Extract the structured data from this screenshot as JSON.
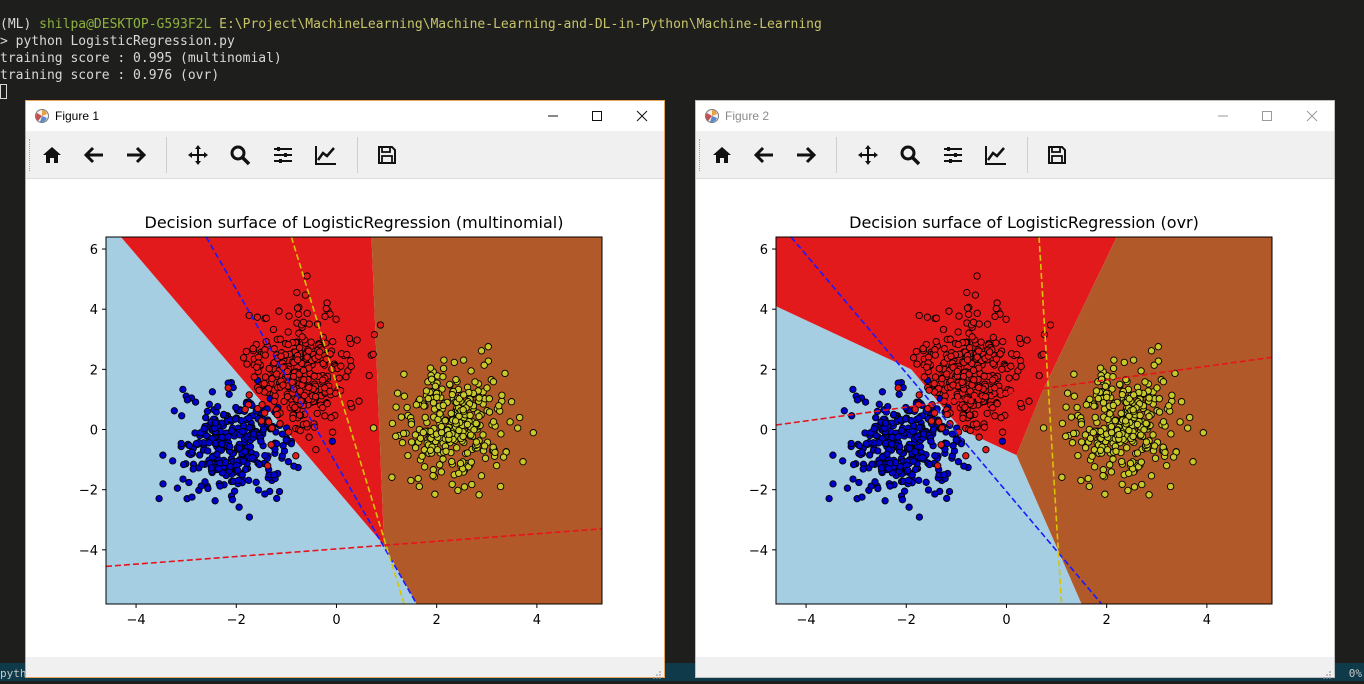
{
  "terminal": {
    "env": "(ML)",
    "user_host": "shilpa@DESKTOP-G593F2L",
    "path": "E:\\Project\\MachineLearning\\Machine-Learning-and-DL-in-Python\\Machine-Learning",
    "command": "> python LogisticRegression.py",
    "output": [
      "training score : 0.995 (multinomial)",
      "training score : 0.976 (ovr)"
    ],
    "status_left": "pyth",
    "status_right": "0%"
  },
  "colors": {
    "light_blue_region": "#a6cee3",
    "red_region": "#e31a1c",
    "brown_region": "#b15928",
    "blue_points": "#0000cc",
    "red_points": "#e31a1c",
    "yellow_points": "#c8c82a"
  },
  "figures": [
    {
      "window_title": "Figure 1",
      "icons": [
        "matplotlib-icon",
        "minimize-icon",
        "maximize-icon",
        "close-icon"
      ],
      "toolbar": [
        "home-icon",
        "back-arrow-icon",
        "forward-arrow-icon",
        "pan-move-icon",
        "zoom-magnifier-icon",
        "configure-subplots-icon",
        "edit-axis-icon",
        "save-floppy-icon"
      ],
      "chart_data": {
        "type": "scatter",
        "title": "Decision surface of LogisticRegression (multinomial)",
        "xlim": [
          -4.6,
          5.3
        ],
        "ylim": [
          -5.8,
          6.4
        ],
        "xticks": [
          "−4",
          "−2",
          "0",
          "2",
          "4"
        ],
        "yticks": [
          "6",
          "4",
          "2",
          "0",
          "−2",
          "−4"
        ],
        "xtick_values": [
          -4,
          -2,
          0,
          2,
          4
        ],
        "ytick_values": [
          6,
          4,
          2,
          0,
          -2,
          -4
        ],
        "classes": [
          {
            "color": "blue",
            "center": [
              -2.0,
              -0.5
            ],
            "spread": [
              0.55,
              0.85
            ],
            "count": 330
          },
          {
            "color": "red",
            "center": [
              -0.7,
              1.9
            ],
            "spread": [
              0.5,
              0.95
            ],
            "count": 330
          },
          {
            "color": "yellow",
            "center": [
              2.3,
              0.2
            ],
            "spread": [
              0.5,
              0.9
            ],
            "count": 330
          }
        ],
        "hyperplanes": [
          {
            "color": "blue",
            "points": [
              [
                -2.6,
                6.4
              ],
              [
                1.6,
                -5.8
              ]
            ]
          },
          {
            "color": "yellow",
            "points": [
              [
                -0.9,
                6.4
              ],
              [
                1.35,
                -5.8
              ]
            ]
          },
          {
            "color": "red",
            "points": [
              [
                -4.6,
                -4.55
              ],
              [
                5.3,
                -3.3
              ]
            ]
          }
        ],
        "regions": {
          "light_blue": [
            [
              -4.6,
              6.4
            ],
            [
              -4.3,
              6.4
            ],
            [
              0.95,
              -3.85
            ],
            [
              1.6,
              -5.8
            ],
            [
              -4.6,
              -5.8
            ]
          ],
          "red": [
            [
              -4.3,
              6.4
            ],
            [
              0.7,
              6.4
            ],
            [
              0.95,
              -3.85
            ]
          ],
          "brown": [
            [
              0.7,
              6.4
            ],
            [
              5.3,
              6.4
            ],
            [
              5.3,
              -5.8
            ],
            [
              1.6,
              -5.8
            ],
            [
              0.95,
              -3.85
            ]
          ]
        }
      }
    },
    {
      "window_title": "Figure 2",
      "icons": [
        "matplotlib-icon",
        "minimize-icon",
        "maximize-icon",
        "close-icon"
      ],
      "toolbar": [
        "home-icon",
        "back-arrow-icon",
        "forward-arrow-icon",
        "pan-move-icon",
        "zoom-magnifier-icon",
        "configure-subplots-icon",
        "edit-axis-icon",
        "save-floppy-icon"
      ],
      "chart_data": {
        "type": "scatter",
        "title": "Decision surface of LogisticRegression (ovr)",
        "xlim": [
          -4.6,
          5.3
        ],
        "ylim": [
          -5.8,
          6.4
        ],
        "xticks": [
          "−4",
          "−2",
          "0",
          "2",
          "4"
        ],
        "yticks": [
          "6",
          "4",
          "2",
          "0",
          "−2",
          "−4"
        ],
        "xtick_values": [
          -4,
          -2,
          0,
          2,
          4
        ],
        "ytick_values": [
          6,
          4,
          2,
          0,
          -2,
          -4
        ],
        "classes": [
          {
            "color": "blue",
            "center": [
              -2.0,
              -0.5
            ],
            "spread": [
              0.55,
              0.85
            ],
            "count": 330
          },
          {
            "color": "red",
            "center": [
              -0.7,
              1.9
            ],
            "spread": [
              0.5,
              0.95
            ],
            "count": 330
          },
          {
            "color": "yellow",
            "center": [
              2.3,
              0.2
            ],
            "spread": [
              0.5,
              0.9
            ],
            "count": 330
          }
        ],
        "hyperplanes": [
          {
            "color": "blue",
            "points": [
              [
                -4.3,
                6.4
              ],
              [
                1.9,
                -5.8
              ]
            ]
          },
          {
            "color": "yellow",
            "points": [
              [
                0.65,
                6.4
              ],
              [
                1.1,
                -5.8
              ]
            ]
          },
          {
            "color": "red",
            "points": [
              [
                -4.6,
                0.15
              ],
              [
                5.3,
                2.4
              ]
            ]
          }
        ],
        "regions": {
          "light_blue": [
            [
              -4.6,
              4.1
            ],
            [
              -1.9,
              2.0
            ],
            [
              -0.9,
              0.0
            ],
            [
              0.2,
              -0.85
            ],
            [
              1.5,
              -5.8
            ],
            [
              -4.6,
              -5.8
            ]
          ],
          "red": [
            [
              -4.6,
              6.4
            ],
            [
              -4.6,
              4.1
            ],
            [
              -1.9,
              2.0
            ],
            [
              -0.9,
              0.0
            ],
            [
              0.2,
              -0.85
            ],
            [
              0.7,
              1.2
            ],
            [
              2.2,
              6.4
            ]
          ],
          "brown": [
            [
              2.2,
              6.4
            ],
            [
              5.3,
              6.4
            ],
            [
              5.3,
              -5.8
            ],
            [
              1.5,
              -5.8
            ],
            [
              0.2,
              -0.85
            ],
            [
              0.7,
              1.2
            ]
          ]
        }
      }
    }
  ]
}
